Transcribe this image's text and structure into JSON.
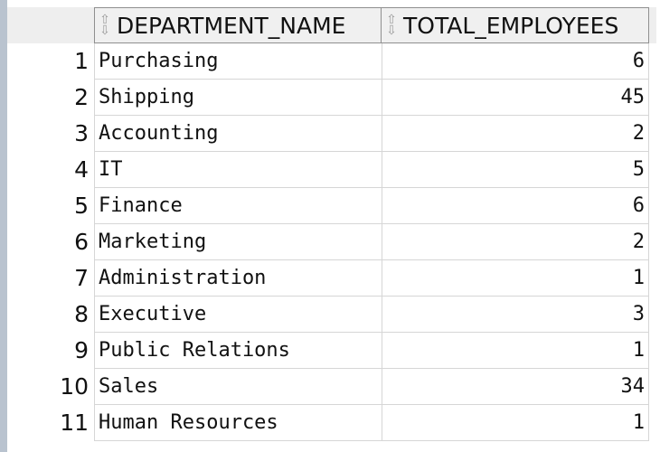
{
  "columns": {
    "department_name": "DEPARTMENT_NAME",
    "total_employees": "TOTAL_EMPLOYEES"
  },
  "rows": [
    {
      "num": "1",
      "department": "Purchasing",
      "total": "6"
    },
    {
      "num": "2",
      "department": "Shipping",
      "total": "45"
    },
    {
      "num": "3",
      "department": "Accounting",
      "total": "2"
    },
    {
      "num": "4",
      "department": "IT",
      "total": "5"
    },
    {
      "num": "5",
      "department": "Finance",
      "total": "6"
    },
    {
      "num": "6",
      "department": "Marketing",
      "total": "2"
    },
    {
      "num": "7",
      "department": "Administration",
      "total": "1"
    },
    {
      "num": "8",
      "department": "Executive",
      "total": "3"
    },
    {
      "num": "9",
      "department": "Public Relations",
      "total": "1"
    },
    {
      "num": "10",
      "department": "Sales",
      "total": "34"
    },
    {
      "num": "11",
      "department": "Human Resources",
      "total": "1"
    }
  ]
}
